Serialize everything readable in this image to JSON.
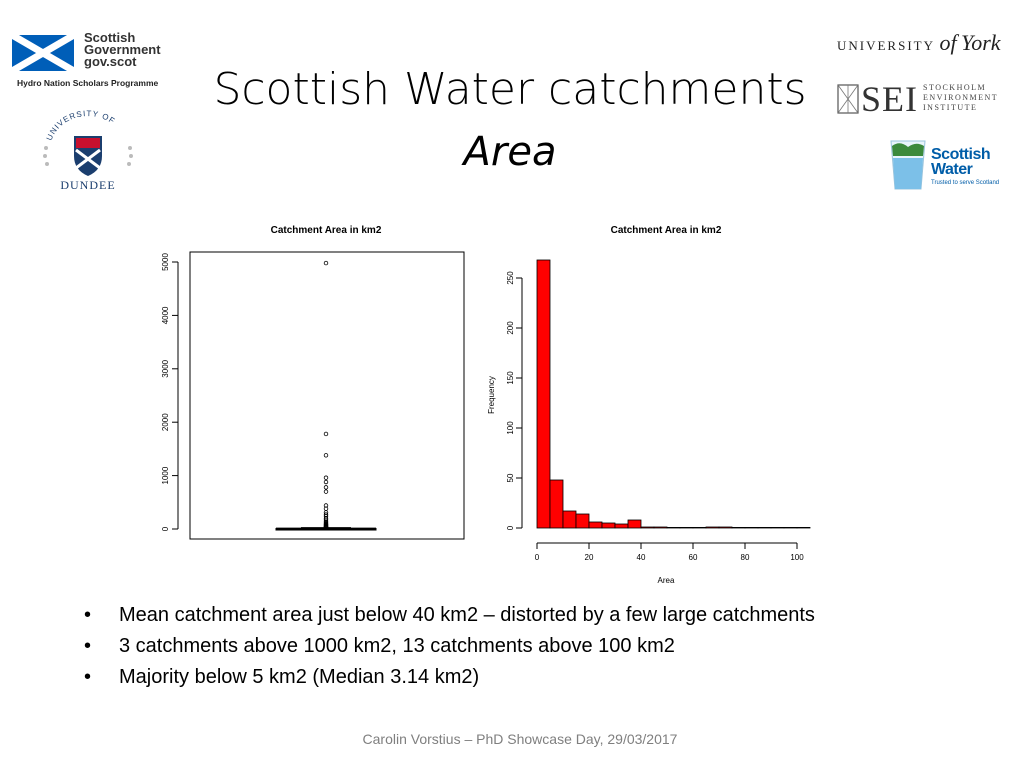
{
  "slide": {
    "title": "Scottish Water catchments",
    "subtitle": "Area",
    "bullets": [
      "Mean catchment area just below 40 km2 – distorted by a few large catchments",
      "3 catchments above 1000 km2, 13 catchments above 100 km2",
      "Majority below 5 km2 (Median 3.14 km2)"
    ],
    "footer": "Carolin Vorstius – PhD Showcase Day, 29/03/2017"
  },
  "logos": {
    "gov": {
      "lines": [
        "Scottish",
        "Government",
        "gov.scot"
      ],
      "programme": "Hydro Nation Scholars Programme",
      "color": "#005eb8"
    },
    "dundee": {
      "arc": "UNIVERSITY OF",
      "name": "DUNDEE",
      "color": "#1b3e6e"
    },
    "york": {
      "prefix": "UNIVERSITY",
      "of": "of",
      "name": "York"
    },
    "sei": {
      "mark": "SEI",
      "lines": [
        "STOCKHOLM",
        "ENVIRONMENT",
        "INSTITUTE"
      ]
    },
    "scottish_water": {
      "lines": [
        "Scottish",
        "Water"
      ],
      "tagline": "Trusted to serve Scotland",
      "color": "#005da8"
    }
  },
  "chart_data": [
    {
      "type": "boxplot",
      "title": "Catchment Area in km2",
      "xlabel": "",
      "ylabel": "",
      "ylim": [
        0,
        5200
      ],
      "yticks": [
        0,
        1000,
        2000,
        3000,
        4000,
        5000
      ],
      "box": {
        "q1": 1,
        "median": 3.14,
        "q3": 9,
        "whisker_low": 0,
        "whisker_high": 25
      },
      "outliers": [
        4980,
        1780,
        1380,
        960,
        880,
        780,
        700,
        440,
        380,
        310,
        270,
        240,
        200,
        170,
        140,
        120,
        100,
        90,
        80,
        70,
        60,
        50,
        45,
        40,
        35,
        30
      ],
      "grid": false
    },
    {
      "type": "histogram",
      "title": "Catchment Area in km2",
      "xlabel": "Area",
      "ylabel": "Frequency",
      "xlim": [
        0,
        104
      ],
      "ylim": [
        0,
        270
      ],
      "xticks": [
        0,
        20,
        40,
        60,
        80,
        100
      ],
      "yticks": [
        0,
        50,
        100,
        150,
        200,
        250
      ],
      "bin_edges": [
        0,
        5,
        10,
        15,
        20,
        25,
        30,
        35,
        40,
        45,
        50,
        55,
        60,
        65,
        70,
        75,
        80,
        85,
        90,
        95,
        100,
        105
      ],
      "counts": [
        268,
        48,
        17,
        14,
        6,
        5,
        4,
        8,
        1,
        1,
        0,
        0,
        0,
        1,
        1,
        0,
        0,
        0,
        0,
        0,
        0
      ],
      "bar_color": "#ff0000",
      "grid": false
    }
  ]
}
